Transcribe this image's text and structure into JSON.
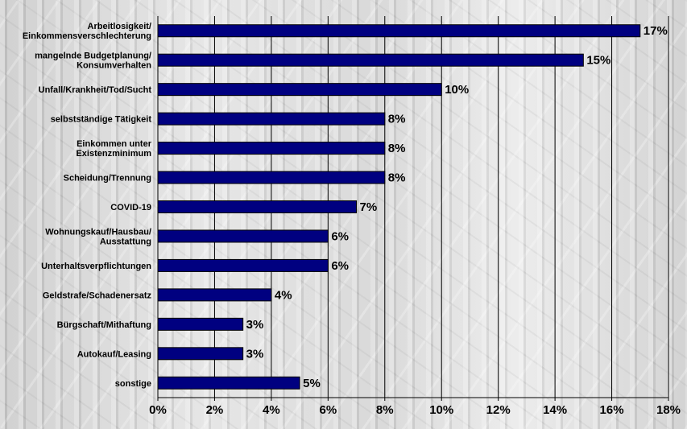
{
  "chart_data": {
    "type": "bar",
    "orientation": "horizontal",
    "categories": [
      [
        "Arbeitlosigkeit/",
        "Einkommensverschlechterung"
      ],
      [
        "mangelnde Budgetplanung/",
        "Konsumverhalten"
      ],
      [
        "Unfall/Krankheit/Tod/Sucht"
      ],
      [
        "selbstständige Tätigkeit"
      ],
      [
        "Einkommen unter",
        "Existenzminimum"
      ],
      [
        "Scheidung/Trennung"
      ],
      [
        "COVID-19"
      ],
      [
        "Wohnungskauf/Hausbau/",
        "Ausstattung"
      ],
      [
        "Unterhaltsverpflichtungen"
      ],
      [
        "Geldstrafe/Schadenersatz"
      ],
      [
        "Bürgschaft/Mithaftung"
      ],
      [
        "Autokauf/Leasing"
      ],
      [
        "sonstige"
      ]
    ],
    "values": [
      17,
      15,
      10,
      8,
      8,
      8,
      7,
      6,
      6,
      4,
      3,
      3,
      5
    ],
    "value_labels": [
      "17%",
      "15%",
      "10%",
      "8%",
      "8%",
      "8%",
      "7%",
      "6%",
      "6%",
      "4%",
      "3%",
      "3%",
      "5%"
    ],
    "xlim": [
      0,
      18
    ],
    "x_ticks": [
      "0%",
      "2%",
      "4%",
      "6%",
      "8%",
      "10%",
      "12%",
      "14%",
      "16%",
      "18%"
    ],
    "grid": true,
    "bar_color": "#000080"
  }
}
